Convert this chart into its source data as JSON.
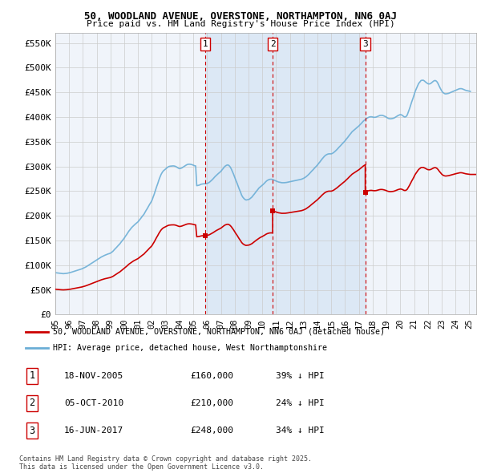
{
  "title_line1": "50, WOODLAND AVENUE, OVERSTONE, NORTHAMPTON, NN6 0AJ",
  "title_line2": "Price paid vs. HM Land Registry's House Price Index (HPI)",
  "xlim_start": 1995.0,
  "xlim_end": 2025.5,
  "ylim_min": 0,
  "ylim_max": 570000,
  "yticks": [
    0,
    50000,
    100000,
    150000,
    200000,
    250000,
    300000,
    350000,
    400000,
    450000,
    500000,
    550000
  ],
  "ytick_labels": [
    "£0",
    "£50K",
    "£100K",
    "£150K",
    "£200K",
    "£250K",
    "£300K",
    "£350K",
    "£400K",
    "£450K",
    "£500K",
    "£550K"
  ],
  "hpi_color": "#6baed6",
  "sale_color": "#cc0000",
  "background_color": "#ffffff",
  "chart_bg_color": "#f0f4fa",
  "shade_color": "#dce8f5",
  "grid_color": "#cccccc",
  "transactions": [
    {
      "date_num": 2005.88,
      "price": 160000,
      "label": "1",
      "date_str": "18-NOV-2005",
      "pct": "39%"
    },
    {
      "date_num": 2010.75,
      "price": 210000,
      "label": "2",
      "date_str": "05-OCT-2010",
      "pct": "24%"
    },
    {
      "date_num": 2017.46,
      "price": 248000,
      "label": "3",
      "date_str": "16-JUN-2017",
      "pct": "34%"
    }
  ],
  "legend_entry1": "50, WOODLAND AVENUE, OVERSTONE, NORTHAMPTON, NN6 0AJ (detached house)",
  "legend_entry2": "HPI: Average price, detached house, West Northamptonshire",
  "footer": "Contains HM Land Registry data © Crown copyright and database right 2025.\nThis data is licensed under the Open Government Licence v3.0.",
  "hpi_data": [
    [
      1995.0,
      85000
    ],
    [
      1995.08,
      84500
    ],
    [
      1995.17,
      84200
    ],
    [
      1995.25,
      83800
    ],
    [
      1995.33,
      83500
    ],
    [
      1995.42,
      83200
    ],
    [
      1995.5,
      83000
    ],
    [
      1995.58,
      82800
    ],
    [
      1995.67,
      83000
    ],
    [
      1995.75,
      83200
    ],
    [
      1995.83,
      83500
    ],
    [
      1995.92,
      84000
    ],
    [
      1996.0,
      84500
    ],
    [
      1996.08,
      85000
    ],
    [
      1996.17,
      85800
    ],
    [
      1996.25,
      86500
    ],
    [
      1996.33,
      87200
    ],
    [
      1996.42,
      88000
    ],
    [
      1996.5,
      88800
    ],
    [
      1996.58,
      89500
    ],
    [
      1996.67,
      90200
    ],
    [
      1996.75,
      91000
    ],
    [
      1996.83,
      91800
    ],
    [
      1996.92,
      92500
    ],
    [
      1997.0,
      93500
    ],
    [
      1997.08,
      94500
    ],
    [
      1997.17,
      95800
    ],
    [
      1997.25,
      97000
    ],
    [
      1997.33,
      98500
    ],
    [
      1997.42,
      100000
    ],
    [
      1997.5,
      101500
    ],
    [
      1997.58,
      103000
    ],
    [
      1997.67,
      104500
    ],
    [
      1997.75,
      106000
    ],
    [
      1997.83,
      107500
    ],
    [
      1997.92,
      109000
    ],
    [
      1998.0,
      110500
    ],
    [
      1998.08,
      112000
    ],
    [
      1998.17,
      113500
    ],
    [
      1998.25,
      115000
    ],
    [
      1998.33,
      116500
    ],
    [
      1998.42,
      117800
    ],
    [
      1998.5,
      119000
    ],
    [
      1998.58,
      120000
    ],
    [
      1998.67,
      121000
    ],
    [
      1998.75,
      122000
    ],
    [
      1998.83,
      122800
    ],
    [
      1998.92,
      123500
    ],
    [
      1999.0,
      124500
    ],
    [
      1999.08,
      126000
    ],
    [
      1999.17,
      128000
    ],
    [
      1999.25,
      130500
    ],
    [
      1999.33,
      133000
    ],
    [
      1999.42,
      135500
    ],
    [
      1999.5,
      138000
    ],
    [
      1999.58,
      140500
    ],
    [
      1999.67,
      143000
    ],
    [
      1999.75,
      146000
    ],
    [
      1999.83,
      149000
    ],
    [
      1999.92,
      152000
    ],
    [
      2000.0,
      155000
    ],
    [
      2000.08,
      158500
    ],
    [
      2000.17,
      162000
    ],
    [
      2000.25,
      165500
    ],
    [
      2000.33,
      169000
    ],
    [
      2000.42,
      172000
    ],
    [
      2000.5,
      175000
    ],
    [
      2000.58,
      177500
    ],
    [
      2000.67,
      180000
    ],
    [
      2000.75,
      182000
    ],
    [
      2000.83,
      184000
    ],
    [
      2000.92,
      186000
    ],
    [
      2001.0,
      188000
    ],
    [
      2001.08,
      191000
    ],
    [
      2001.17,
      194000
    ],
    [
      2001.25,
      197000
    ],
    [
      2001.33,
      200000
    ],
    [
      2001.42,
      203000
    ],
    [
      2001.5,
      207000
    ],
    [
      2001.58,
      211000
    ],
    [
      2001.67,
      215000
    ],
    [
      2001.75,
      219000
    ],
    [
      2001.83,
      223000
    ],
    [
      2001.92,
      227000
    ],
    [
      2002.0,
      231000
    ],
    [
      2002.08,
      237000
    ],
    [
      2002.17,
      244000
    ],
    [
      2002.25,
      251000
    ],
    [
      2002.33,
      258000
    ],
    [
      2002.42,
      265000
    ],
    [
      2002.5,
      272000
    ],
    [
      2002.58,
      278000
    ],
    [
      2002.67,
      284000
    ],
    [
      2002.75,
      288000
    ],
    [
      2002.83,
      291000
    ],
    [
      2002.92,
      293000
    ],
    [
      2003.0,
      295000
    ],
    [
      2003.08,
      297000
    ],
    [
      2003.17,
      299000
    ],
    [
      2003.25,
      300000
    ],
    [
      2003.33,
      300500
    ],
    [
      2003.42,
      300800
    ],
    [
      2003.5,
      301000
    ],
    [
      2003.58,
      301000
    ],
    [
      2003.67,
      300500
    ],
    [
      2003.75,
      299500
    ],
    [
      2003.83,
      298000
    ],
    [
      2003.92,
      296500
    ],
    [
      2004.0,
      295500
    ],
    [
      2004.08,
      296000
    ],
    [
      2004.17,
      297000
    ],
    [
      2004.25,
      298500
    ],
    [
      2004.33,
      300000
    ],
    [
      2004.42,
      301500
    ],
    [
      2004.5,
      303000
    ],
    [
      2004.58,
      304000
    ],
    [
      2004.67,
      304500
    ],
    [
      2004.75,
      304500
    ],
    [
      2004.83,
      304000
    ],
    [
      2004.92,
      303500
    ],
    [
      2005.0,
      302500
    ],
    [
      2005.08,
      301500
    ],
    [
      2005.17,
      301000
    ],
    [
      2005.25,
      261000
    ],
    [
      2005.33,
      261500
    ],
    [
      2005.42,
      262000
    ],
    [
      2005.5,
      263000
    ],
    [
      2005.58,
      264000
    ],
    [
      2005.67,
      264500
    ],
    [
      2005.75,
      264800
    ],
    [
      2005.83,
      265000
    ],
    [
      2005.92,
      265200
    ],
    [
      2006.0,
      265500
    ],
    [
      2006.08,
      266500
    ],
    [
      2006.17,
      268000
    ],
    [
      2006.25,
      270000
    ],
    [
      2006.33,
      272000
    ],
    [
      2006.42,
      274500
    ],
    [
      2006.5,
      277000
    ],
    [
      2006.58,
      279500
    ],
    [
      2006.67,
      282000
    ],
    [
      2006.75,
      284000
    ],
    [
      2006.83,
      286000
    ],
    [
      2006.92,
      288000
    ],
    [
      2007.0,
      290000
    ],
    [
      2007.08,
      293000
    ],
    [
      2007.17,
      296000
    ],
    [
      2007.25,
      299000
    ],
    [
      2007.33,
      301000
    ],
    [
      2007.42,
      302500
    ],
    [
      2007.5,
      303000
    ],
    [
      2007.58,
      302000
    ],
    [
      2007.67,
      299000
    ],
    [
      2007.75,
      295000
    ],
    [
      2007.83,
      290000
    ],
    [
      2007.92,
      284000
    ],
    [
      2008.0,
      278000
    ],
    [
      2008.08,
      272000
    ],
    [
      2008.17,
      266000
    ],
    [
      2008.25,
      260000
    ],
    [
      2008.33,
      254000
    ],
    [
      2008.42,
      248000
    ],
    [
      2008.5,
      242000
    ],
    [
      2008.58,
      238000
    ],
    [
      2008.67,
      235000
    ],
    [
      2008.75,
      233000
    ],
    [
      2008.83,
      232000
    ],
    [
      2008.92,
      232500
    ],
    [
      2009.0,
      233000
    ],
    [
      2009.08,
      234000
    ],
    [
      2009.17,
      236000
    ],
    [
      2009.25,
      238000
    ],
    [
      2009.33,
      241000
    ],
    [
      2009.42,
      244000
    ],
    [
      2009.5,
      247000
    ],
    [
      2009.58,
      250000
    ],
    [
      2009.67,
      253000
    ],
    [
      2009.75,
      256000
    ],
    [
      2009.83,
      258000
    ],
    [
      2009.92,
      260000
    ],
    [
      2010.0,
      262000
    ],
    [
      2010.08,
      264000
    ],
    [
      2010.17,
      266500
    ],
    [
      2010.25,
      269000
    ],
    [
      2010.33,
      271000
    ],
    [
      2010.42,
      272500
    ],
    [
      2010.5,
      273500
    ],
    [
      2010.58,
      274000
    ],
    [
      2010.67,
      274000
    ],
    [
      2010.75,
      273500
    ],
    [
      2010.83,
      272500
    ],
    [
      2010.92,
      271500
    ],
    [
      2011.0,
      270500
    ],
    [
      2011.08,
      269500
    ],
    [
      2011.17,
      268500
    ],
    [
      2011.25,
      268000
    ],
    [
      2011.33,
      267500
    ],
    [
      2011.42,
      267000
    ],
    [
      2011.5,
      267000
    ],
    [
      2011.58,
      267000
    ],
    [
      2011.67,
      267200
    ],
    [
      2011.75,
      267500
    ],
    [
      2011.83,
      268000
    ],
    [
      2011.92,
      268500
    ],
    [
      2012.0,
      269000
    ],
    [
      2012.08,
      269500
    ],
    [
      2012.17,
      270000
    ],
    [
      2012.25,
      270500
    ],
    [
      2012.33,
      271000
    ],
    [
      2012.42,
      271500
    ],
    [
      2012.5,
      272000
    ],
    [
      2012.58,
      272500
    ],
    [
      2012.67,
      273000
    ],
    [
      2012.75,
      273500
    ],
    [
      2012.83,
      274000
    ],
    [
      2012.92,
      275000
    ],
    [
      2013.0,
      276000
    ],
    [
      2013.08,
      277500
    ],
    [
      2013.17,
      279000
    ],
    [
      2013.25,
      281000
    ],
    [
      2013.33,
      283000
    ],
    [
      2013.42,
      285500
    ],
    [
      2013.5,
      288000
    ],
    [
      2013.58,
      290500
    ],
    [
      2013.67,
      293000
    ],
    [
      2013.75,
      295500
    ],
    [
      2013.83,
      298000
    ],
    [
      2013.92,
      300500
    ],
    [
      2014.0,
      303000
    ],
    [
      2014.08,
      306000
    ],
    [
      2014.17,
      309000
    ],
    [
      2014.25,
      312000
    ],
    [
      2014.33,
      315000
    ],
    [
      2014.42,
      318000
    ],
    [
      2014.5,
      320500
    ],
    [
      2014.58,
      322500
    ],
    [
      2014.67,
      324000
    ],
    [
      2014.75,
      325000
    ],
    [
      2014.83,
      325500
    ],
    [
      2014.92,
      325500
    ],
    [
      2015.0,
      325500
    ],
    [
      2015.08,
      326500
    ],
    [
      2015.17,
      328000
    ],
    [
      2015.25,
      330000
    ],
    [
      2015.33,
      332000
    ],
    [
      2015.42,
      334500
    ],
    [
      2015.5,
      337000
    ],
    [
      2015.58,
      339500
    ],
    [
      2015.67,
      342000
    ],
    [
      2015.75,
      344500
    ],
    [
      2015.83,
      347000
    ],
    [
      2015.92,
      349500
    ],
    [
      2016.0,
      352000
    ],
    [
      2016.08,
      355000
    ],
    [
      2016.17,
      358000
    ],
    [
      2016.25,
      361000
    ],
    [
      2016.33,
      364000
    ],
    [
      2016.42,
      367000
    ],
    [
      2016.5,
      370000
    ],
    [
      2016.58,
      372000
    ],
    [
      2016.67,
      374000
    ],
    [
      2016.75,
      376000
    ],
    [
      2016.83,
      378000
    ],
    [
      2016.92,
      380000
    ],
    [
      2017.0,
      382000
    ],
    [
      2017.08,
      384500
    ],
    [
      2017.17,
      387000
    ],
    [
      2017.25,
      389500
    ],
    [
      2017.33,
      392000
    ],
    [
      2017.42,
      394000
    ],
    [
      2017.5,
      396000
    ],
    [
      2017.58,
      397500
    ],
    [
      2017.67,
      399000
    ],
    [
      2017.75,
      400000
    ],
    [
      2017.83,
      400500
    ],
    [
      2017.92,
      400500
    ],
    [
      2018.0,
      400000
    ],
    [
      2018.08,
      399500
    ],
    [
      2018.17,
      399500
    ],
    [
      2018.25,
      400000
    ],
    [
      2018.33,
      401000
    ],
    [
      2018.42,
      402000
    ],
    [
      2018.5,
      403000
    ],
    [
      2018.58,
      403500
    ],
    [
      2018.67,
      403500
    ],
    [
      2018.75,
      403000
    ],
    [
      2018.83,
      402000
    ],
    [
      2018.92,
      401000
    ],
    [
      2019.0,
      399500
    ],
    [
      2019.08,
      398000
    ],
    [
      2019.17,
      397000
    ],
    [
      2019.25,
      396500
    ],
    [
      2019.33,
      396500
    ],
    [
      2019.42,
      397000
    ],
    [
      2019.5,
      397500
    ],
    [
      2019.58,
      398500
    ],
    [
      2019.67,
      400000
    ],
    [
      2019.75,
      401500
    ],
    [
      2019.83,
      403000
    ],
    [
      2019.92,
      404000
    ],
    [
      2020.0,
      405000
    ],
    [
      2020.08,
      404500
    ],
    [
      2020.17,
      403000
    ],
    [
      2020.25,
      401000
    ],
    [
      2020.33,
      400000
    ],
    [
      2020.42,
      401000
    ],
    [
      2020.5,
      404000
    ],
    [
      2020.58,
      410000
    ],
    [
      2020.67,
      417000
    ],
    [
      2020.75,
      424000
    ],
    [
      2020.83,
      431000
    ],
    [
      2020.92,
      438000
    ],
    [
      2021.0,
      445000
    ],
    [
      2021.08,
      452000
    ],
    [
      2021.17,
      458000
    ],
    [
      2021.25,
      463000
    ],
    [
      2021.33,
      468000
    ],
    [
      2021.42,
      471000
    ],
    [
      2021.5,
      474000
    ],
    [
      2021.58,
      474500
    ],
    [
      2021.67,
      474500
    ],
    [
      2021.75,
      473000
    ],
    [
      2021.83,
      471000
    ],
    [
      2021.92,
      469000
    ],
    [
      2022.0,
      467500
    ],
    [
      2022.08,
      467000
    ],
    [
      2022.17,
      467500
    ],
    [
      2022.25,
      469000
    ],
    [
      2022.33,
      471000
    ],
    [
      2022.42,
      473000
    ],
    [
      2022.5,
      474000
    ],
    [
      2022.58,
      473500
    ],
    [
      2022.67,
      471000
    ],
    [
      2022.75,
      467000
    ],
    [
      2022.83,
      462000
    ],
    [
      2022.92,
      457000
    ],
    [
      2023.0,
      453000
    ],
    [
      2023.08,
      450000
    ],
    [
      2023.17,
      448000
    ],
    [
      2023.25,
      447000
    ],
    [
      2023.33,
      447000
    ],
    [
      2023.42,
      447500
    ],
    [
      2023.5,
      448000
    ],
    [
      2023.58,
      449000
    ],
    [
      2023.67,
      450000
    ],
    [
      2023.75,
      451000
    ],
    [
      2023.83,
      452000
    ],
    [
      2023.92,
      453000
    ],
    [
      2024.0,
      454000
    ],
    [
      2024.08,
      455000
    ],
    [
      2024.17,
      456000
    ],
    [
      2024.25,
      457000
    ],
    [
      2024.33,
      457500
    ],
    [
      2024.42,
      457500
    ],
    [
      2024.5,
      457000
    ],
    [
      2024.58,
      456000
    ],
    [
      2024.67,
      455000
    ],
    [
      2024.75,
      454000
    ],
    [
      2024.83,
      453500
    ],
    [
      2024.92,
      453000
    ],
    [
      2025.0,
      452500
    ],
    [
      2025.08,
      452000
    ]
  ]
}
